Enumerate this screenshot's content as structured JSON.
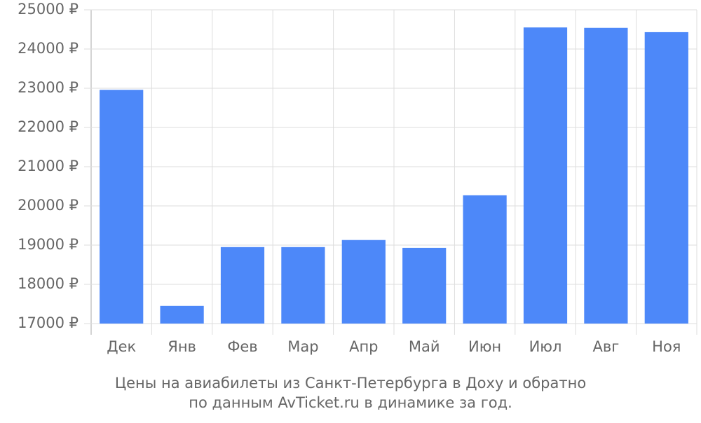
{
  "chart_data": {
    "type": "bar",
    "title": "Цены на авиабилеты из Санкт-Петербурга в Доху и обратно",
    "subtitle": "по данным AvTicket.ru в динамике за год.",
    "categories": [
      "Дек",
      "Янв",
      "Фев",
      "Мар",
      "Апр",
      "Май",
      "Июн",
      "Июл",
      "Авг",
      "Ноя"
    ],
    "values": [
      22960,
      17450,
      18950,
      18950,
      19130,
      18930,
      20270,
      24550,
      24540,
      24430
    ],
    "color": "#4d88f9",
    "ylim": [
      17000,
      25000
    ],
    "yticks": [
      {
        "value": 17000,
        "label": "17000 ₽"
      },
      {
        "value": 18000,
        "label": "18000 ₽"
      },
      {
        "value": 19000,
        "label": "19000 ₽"
      },
      {
        "value": 20000,
        "label": "20000 ₽"
      },
      {
        "value": 21000,
        "label": "21000 ₽"
      },
      {
        "value": 22000,
        "label": "22000 ₽"
      },
      {
        "value": 23000,
        "label": "23000 ₽"
      },
      {
        "value": 24000,
        "label": "24000 ₽"
      },
      {
        "value": 25000,
        "label": "25000 ₽"
      }
    ],
    "grid": true
  }
}
